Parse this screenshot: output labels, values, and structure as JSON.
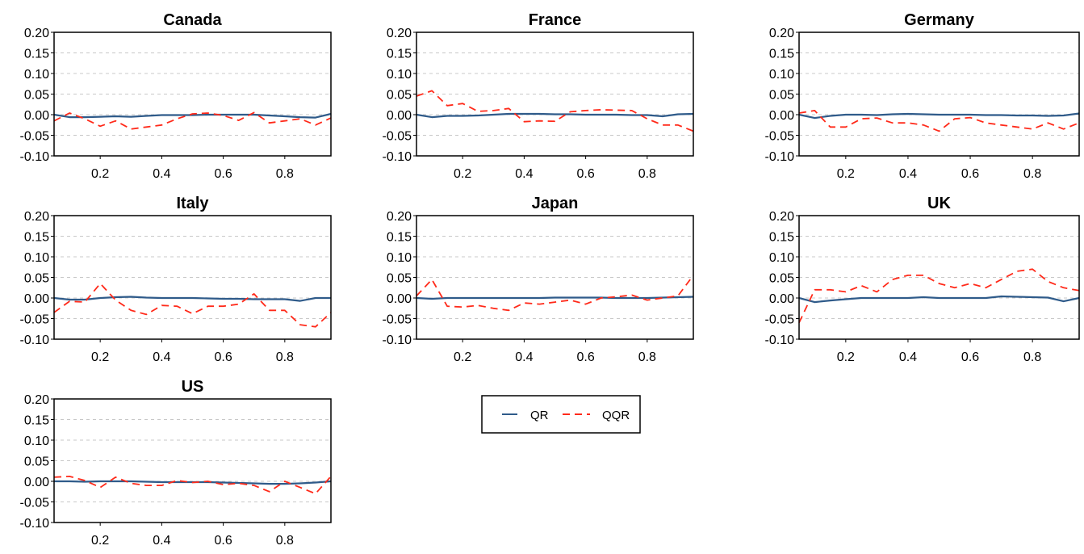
{
  "legend": {
    "items": [
      {
        "label": "QR",
        "color": "#2f5b8a",
        "dash": "solid"
      },
      {
        "label": "QQR",
        "color": "#ff2a1a",
        "dash": "dashed"
      }
    ]
  },
  "chart_data": [
    {
      "type": "line",
      "title": "Canada",
      "x": [
        0.05,
        0.1,
        0.15,
        0.2,
        0.25,
        0.3,
        0.35,
        0.4,
        0.45,
        0.5,
        0.55,
        0.6,
        0.65,
        0.7,
        0.75,
        0.8,
        0.85,
        0.9,
        0.95
      ],
      "series": [
        {
          "name": "QR",
          "values": [
            0.0,
            -0.006,
            -0.006,
            -0.005,
            -0.004,
            -0.005,
            -0.003,
            -0.001,
            -0.001,
            -0.001,
            0.0,
            0.0,
            0.0,
            0.0,
            -0.002,
            -0.004,
            -0.006,
            -0.007,
            0.002
          ]
        },
        {
          "name": "QQR",
          "values": [
            -0.015,
            0.004,
            -0.01,
            -0.028,
            -0.015,
            -0.035,
            -0.03,
            -0.025,
            -0.01,
            0.002,
            0.004,
            -0.002,
            -0.014,
            0.005,
            -0.02,
            -0.015,
            -0.01,
            -0.025,
            -0.008
          ]
        }
      ],
      "xticks": [
        "0.2",
        "0.4",
        "0.6",
        "0.8"
      ],
      "xtick_values": [
        0.2,
        0.4,
        0.6,
        0.8
      ],
      "yticks": [
        "0.20",
        "0.15",
        "0.10",
        "0.05",
        "0.00",
        "-0.05",
        "-0.10"
      ],
      "xlim": [
        0.05,
        0.95
      ],
      "ylim": [
        -0.1,
        0.2
      ],
      "grid": true
    },
    {
      "type": "line",
      "title": "France",
      "x": [
        0.05,
        0.1,
        0.15,
        0.2,
        0.25,
        0.3,
        0.35,
        0.4,
        0.45,
        0.5,
        0.55,
        0.6,
        0.65,
        0.7,
        0.75,
        0.8,
        0.85,
        0.9,
        0.95
      ],
      "series": [
        {
          "name": "QR",
          "values": [
            0.0,
            -0.006,
            -0.003,
            -0.003,
            -0.002,
            0.0,
            0.002,
            0.002,
            0.002,
            0.001,
            0.001,
            0.0,
            0.0,
            0.0,
            -0.001,
            -0.001,
            -0.004,
            0.001,
            0.002
          ]
        },
        {
          "name": "QQR",
          "values": [
            0.045,
            0.058,
            0.022,
            0.027,
            0.008,
            0.01,
            0.015,
            -0.017,
            -0.015,
            -0.016,
            0.007,
            0.01,
            0.012,
            0.011,
            0.01,
            -0.01,
            -0.025,
            -0.025,
            -0.04
          ]
        }
      ],
      "xticks": [
        "0.2",
        "0.4",
        "0.6",
        "0.8"
      ],
      "xtick_values": [
        0.2,
        0.4,
        0.6,
        0.8
      ],
      "yticks": [
        "0.20",
        "0.15",
        "0.10",
        "0.05",
        "0.00",
        "-0.05",
        "-0.10"
      ],
      "xlim": [
        0.05,
        0.95
      ],
      "ylim": [
        -0.1,
        0.2
      ],
      "grid": true
    },
    {
      "type": "line",
      "title": "Germany",
      "x": [
        0.05,
        0.1,
        0.15,
        0.2,
        0.25,
        0.3,
        0.35,
        0.4,
        0.45,
        0.5,
        0.55,
        0.6,
        0.65,
        0.7,
        0.75,
        0.8,
        0.85,
        0.9,
        0.95
      ],
      "series": [
        {
          "name": "QR",
          "values": [
            0.0,
            -0.008,
            -0.003,
            0.0,
            0.0,
            -0.001,
            0.001,
            0.002,
            0.001,
            0.0,
            0.0,
            0.0,
            -0.001,
            -0.001,
            -0.002,
            -0.002,
            -0.003,
            -0.002,
            0.003
          ]
        },
        {
          "name": "QQR",
          "values": [
            0.004,
            0.01,
            -0.03,
            -0.03,
            -0.01,
            -0.008,
            -0.02,
            -0.02,
            -0.025,
            -0.04,
            -0.01,
            -0.007,
            -0.02,
            -0.025,
            -0.03,
            -0.035,
            -0.02,
            -0.035,
            -0.02
          ]
        }
      ],
      "xticks": [
        "0.2",
        "0.4",
        "0.6",
        "0.8"
      ],
      "xtick_values": [
        0.2,
        0.4,
        0.6,
        0.8
      ],
      "yticks": [
        "0.20",
        "0.15",
        "0.10",
        "0.05",
        "0.00",
        "-0.05",
        "-0.10"
      ],
      "xlim": [
        0.05,
        0.95
      ],
      "ylim": [
        -0.1,
        0.2
      ],
      "grid": true
    },
    {
      "type": "line",
      "title": "Italy",
      "x": [
        0.05,
        0.1,
        0.15,
        0.2,
        0.25,
        0.3,
        0.35,
        0.4,
        0.45,
        0.5,
        0.55,
        0.6,
        0.65,
        0.7,
        0.75,
        0.8,
        0.85,
        0.9,
        0.95
      ],
      "series": [
        {
          "name": "QR",
          "values": [
            0.0,
            -0.004,
            -0.004,
            0.0,
            0.002,
            0.003,
            0.001,
            0.0,
            0.0,
            0.0,
            -0.001,
            -0.002,
            -0.002,
            -0.003,
            -0.003,
            -0.003,
            -0.007,
            0.0,
            0.0
          ]
        },
        {
          "name": "QQR",
          "values": [
            -0.035,
            -0.008,
            -0.01,
            0.035,
            -0.005,
            -0.03,
            -0.04,
            -0.018,
            -0.02,
            -0.038,
            -0.02,
            -0.02,
            -0.015,
            0.01,
            -0.03,
            -0.03,
            -0.065,
            -0.07,
            -0.035
          ]
        }
      ],
      "xticks": [
        "0.2",
        "0.4",
        "0.6",
        "0.8"
      ],
      "xtick_values": [
        0.2,
        0.4,
        0.6,
        0.8
      ],
      "yticks": [
        "0.20",
        "0.15",
        "0.10",
        "0.05",
        "0.00",
        "-0.05",
        "-0.10"
      ],
      "xlim": [
        0.05,
        0.95
      ],
      "ylim": [
        -0.1,
        0.2
      ],
      "grid": true
    },
    {
      "type": "line",
      "title": "Japan",
      "x": [
        0.05,
        0.1,
        0.15,
        0.2,
        0.25,
        0.3,
        0.35,
        0.4,
        0.45,
        0.5,
        0.55,
        0.6,
        0.65,
        0.7,
        0.75,
        0.8,
        0.85,
        0.9,
        0.95
      ],
      "series": [
        {
          "name": "QR",
          "values": [
            0.0,
            -0.002,
            0.0,
            0.0,
            0.0,
            0.0,
            0.0,
            0.0,
            0.0,
            0.001,
            0.001,
            0.001,
            0.001,
            0.0,
            0.0,
            0.0,
            0.001,
            0.002,
            0.003
          ]
        },
        {
          "name": "QQR",
          "values": [
            0.005,
            0.045,
            -0.02,
            -0.022,
            -0.018,
            -0.025,
            -0.03,
            -0.012,
            -0.015,
            -0.01,
            -0.005,
            -0.015,
            0.0,
            0.003,
            0.007,
            -0.005,
            0.0,
            0.005,
            0.055
          ]
        }
      ],
      "xticks": [
        "0.2",
        "0.4",
        "0.6",
        "0.8"
      ],
      "xtick_values": [
        0.2,
        0.4,
        0.6,
        0.8
      ],
      "yticks": [
        "0.20",
        "0.15",
        "0.10",
        "0.05",
        "0.00",
        "-0.05",
        "-0.10"
      ],
      "xlim": [
        0.05,
        0.95
      ],
      "ylim": [
        -0.1,
        0.2
      ],
      "grid": true
    },
    {
      "type": "line",
      "title": "UK",
      "x": [
        0.05,
        0.1,
        0.15,
        0.2,
        0.25,
        0.3,
        0.35,
        0.4,
        0.45,
        0.5,
        0.55,
        0.6,
        0.65,
        0.7,
        0.75,
        0.8,
        0.85,
        0.9,
        0.95
      ],
      "series": [
        {
          "name": "QR",
          "values": [
            0.0,
            -0.01,
            -0.006,
            -0.003,
            0.0,
            0.0,
            0.0,
            0.0,
            0.002,
            0.0,
            0.0,
            0.0,
            0.0,
            0.004,
            0.003,
            0.002,
            0.001,
            -0.008,
            0.0
          ]
        },
        {
          "name": "QQR",
          "values": [
            -0.06,
            0.02,
            0.02,
            0.015,
            0.03,
            0.015,
            0.045,
            0.055,
            0.055,
            0.035,
            0.025,
            0.035,
            0.025,
            0.045,
            0.065,
            0.07,
            0.04,
            0.025,
            0.018
          ]
        }
      ],
      "xticks": [
        "0.2",
        "0.4",
        "0.6",
        "0.8"
      ],
      "xtick_values": [
        0.2,
        0.4,
        0.6,
        0.8
      ],
      "yticks": [
        "0.20",
        "0.15",
        "0.10",
        "0.05",
        "0.00",
        "-0.05",
        "-0.10"
      ],
      "xlim": [
        0.05,
        0.95
      ],
      "ylim": [
        -0.1,
        0.2
      ],
      "grid": true
    },
    {
      "type": "line",
      "title": "US",
      "x": [
        0.05,
        0.1,
        0.15,
        0.2,
        0.25,
        0.3,
        0.35,
        0.4,
        0.45,
        0.5,
        0.55,
        0.6,
        0.65,
        0.7,
        0.75,
        0.8,
        0.85,
        0.9,
        0.95
      ],
      "series": [
        {
          "name": "QR",
          "values": [
            0.0,
            0.0,
            -0.001,
            0.0,
            0.0,
            0.0,
            -0.001,
            -0.002,
            -0.002,
            -0.002,
            -0.002,
            -0.003,
            -0.004,
            -0.005,
            -0.006,
            -0.006,
            -0.005,
            -0.003,
            0.0
          ]
        },
        {
          "name": "QQR",
          "values": [
            0.01,
            0.012,
            0.002,
            -0.015,
            0.01,
            -0.005,
            -0.01,
            -0.01,
            0.002,
            -0.003,
            0.0,
            -0.008,
            -0.005,
            -0.01,
            -0.025,
            0.0,
            -0.015,
            -0.03,
            0.012
          ]
        }
      ],
      "xticks": [
        "0.2",
        "0.4",
        "0.6",
        "0.8"
      ],
      "xtick_values": [
        0.2,
        0.4,
        0.6,
        0.8
      ],
      "yticks": [
        "0.20",
        "0.15",
        "0.10",
        "0.05",
        "0.00",
        "-0.05",
        "-0.10"
      ],
      "xlim": [
        0.05,
        0.95
      ],
      "ylim": [
        -0.1,
        0.2
      ],
      "grid": true
    }
  ]
}
